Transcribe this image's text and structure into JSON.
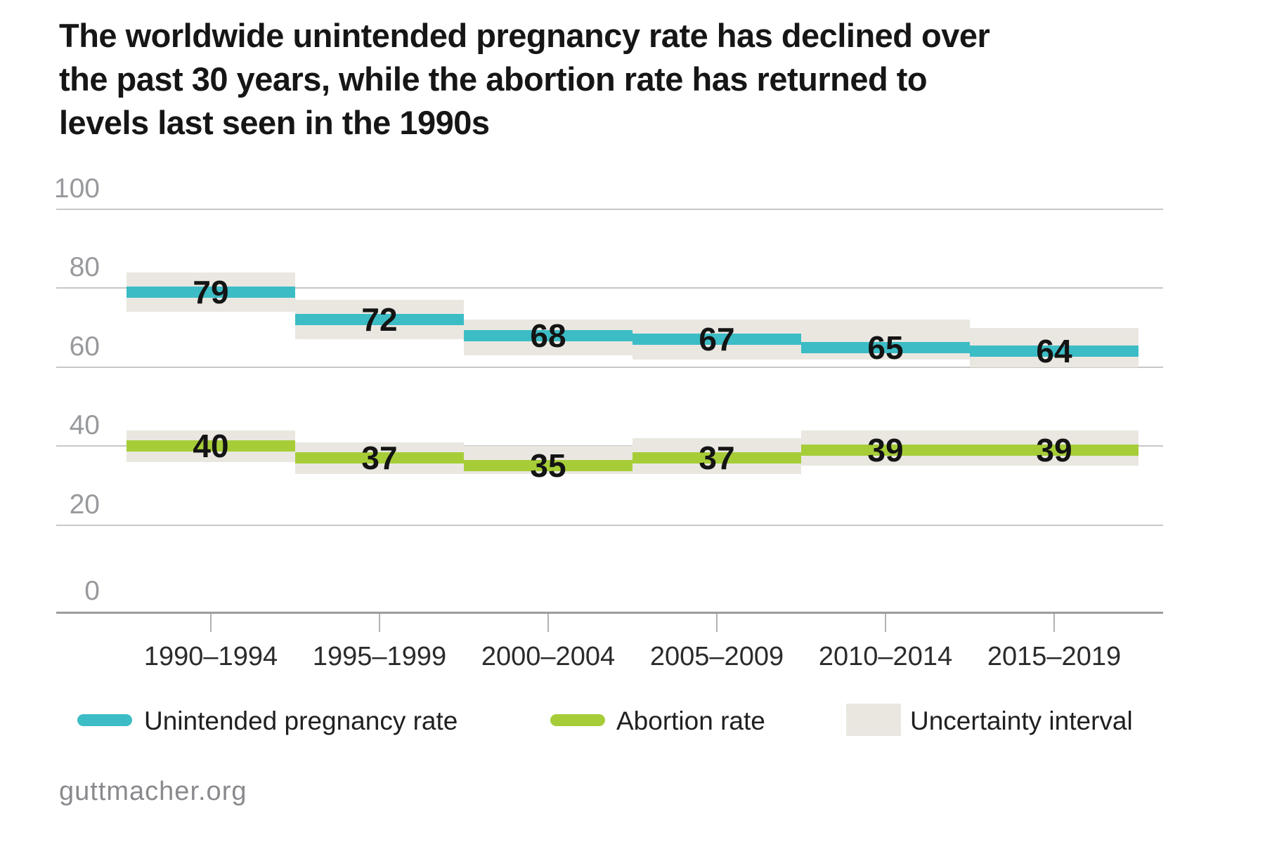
{
  "title": {
    "lines": [
      "The worldwide unintended pregnancy rate has declined over",
      "the past 30 years, while the abortion rate has returned to",
      "levels last seen in the 1990s"
    ]
  },
  "chart_data": {
    "type": "line",
    "style": "stepped-segments-with-uncertainty-bands",
    "categories": [
      "1990–1994",
      "1995–1999",
      "2000–2004",
      "2005–2009",
      "2010–2014",
      "2015–2019"
    ],
    "series": [
      {
        "name": "Unintended pregnancy rate",
        "color": "#3cbcc5",
        "values": [
          79,
          72,
          68,
          67,
          65,
          64
        ],
        "uncertainty_intervals": [
          [
            74,
            84
          ],
          [
            67,
            77
          ],
          [
            63,
            72
          ],
          [
            62,
            72
          ],
          [
            62,
            72
          ],
          [
            60,
            70
          ]
        ]
      },
      {
        "name": "Abortion rate",
        "color": "#a6cd38",
        "values": [
          40,
          37,
          35,
          37,
          39,
          39
        ],
        "uncertainty_intervals": [
          [
            36,
            44
          ],
          [
            33,
            41
          ],
          [
            33,
            40
          ],
          [
            33,
            42
          ],
          [
            35,
            44
          ],
          [
            35,
            44
          ]
        ]
      }
    ],
    "title": "The worldwide unintended pregnancy rate has declined over the past 30 years, while the abortion rate has returned to levels last seen in the 1990s",
    "xlabel": "",
    "ylabel": "",
    "ylim": [
      0,
      100
    ],
    "yticks": [
      0,
      20,
      40,
      60,
      80,
      100
    ],
    "grid": "horizontal",
    "legend_position": "bottom",
    "uncertainty_band_color": "#eae7e1",
    "data_labels_shown": true
  },
  "legend": {
    "items": [
      {
        "label": "Unintended pregnancy rate",
        "swatch": "teal-line"
      },
      {
        "label": "Abortion rate",
        "swatch": "green-line"
      },
      {
        "label": "Uncertainty interval",
        "swatch": "gray-rect"
      }
    ]
  },
  "footer": {
    "source": "guttmacher.org"
  },
  "colors": {
    "pregnancy_rate": "#3cbcc5",
    "abortion_rate": "#a6cd38",
    "uncertainty_band": "#eae7e1",
    "gridline": "#c8c7c4",
    "axis_line": "#9c9c9a",
    "y_label": "#97999c",
    "x_label": "#2b2b2b",
    "value_label": "#141414",
    "title_text": "#161616",
    "footer_text": "#8a8a8e"
  }
}
